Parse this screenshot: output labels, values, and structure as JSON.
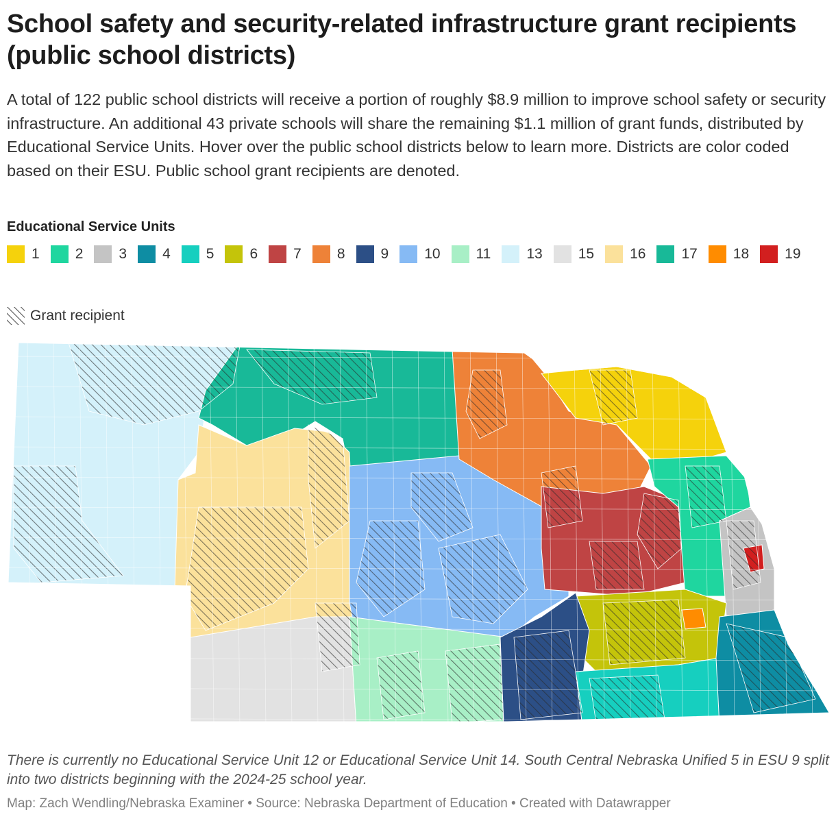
{
  "title": "School safety and security-related infrastructure grant recipients (public school districts)",
  "description": "A total of 122 public school districts will receive a portion of roughly $8.9 million to improve school safety or security infrastructure. An additional 43 private schools will share the remaining $1.1 million of grant funds, distributed by Educational Service Units. Hover over the public school districts below to learn more. Districts are color coded based on their ESU. Public school grant recipients are denoted.",
  "legend": {
    "title": "Educational Service Units",
    "items": [
      {
        "label": "1",
        "color": "#f5d20c"
      },
      {
        "label": "2",
        "color": "#1fd69f"
      },
      {
        "label": "3",
        "color": "#c4c4c4"
      },
      {
        "label": "4",
        "color": "#0e8da3"
      },
      {
        "label": "5",
        "color": "#16cfbf"
      },
      {
        "label": "6",
        "color": "#c4c40a"
      },
      {
        "label": "7",
        "color": "#bf4444"
      },
      {
        "label": "8",
        "color": "#ee8238"
      },
      {
        "label": "9",
        "color": "#2c4f86"
      },
      {
        "label": "10",
        "color": "#86baf4"
      },
      {
        "label": "11",
        "color": "#a8efc6"
      },
      {
        "label": "13",
        "color": "#d4f1fa"
      },
      {
        "label": "15",
        "color": "#e2e2e2"
      },
      {
        "label": "16",
        "color": "#fbe19b"
      },
      {
        "label": "17",
        "color": "#18b998"
      },
      {
        "label": "18",
        "color": "#ff8c00"
      },
      {
        "label": "19",
        "color": "#d21f1f"
      }
    ],
    "grant_label": "Grant recipient"
  },
  "note": "There is currently no Educational Service Unit 12 or Educational Service Unit 14. South Central Nebraska Unified 5 in ESU 9 split into two districts beginning with the 2024-25 school year.",
  "footer": "Map: Zach Wendling/Nebraska Examiner • Source: Nebraska Department of Education • Created with Datawrapper"
}
